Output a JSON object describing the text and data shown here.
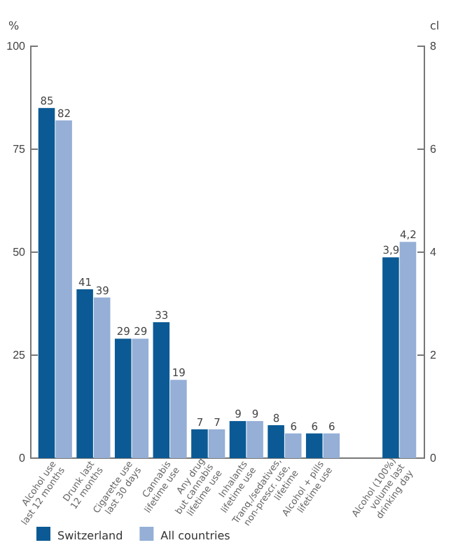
{
  "chart_data": {
    "type": "bar",
    "ylabel": "%",
    "y2label": "cl",
    "categories": [
      "Alcohol use\nlast 12 months",
      "Drunk last\n12 months",
      "Cigarette use\nlast 30 days",
      "Cannabis\nlifetime use",
      "Any drug\nbut cannabis\nlifetime use",
      "Inhalants\nlifetime use",
      "Tranq./sedatives,\nnon-prescr. use,\nlifetime",
      "Alcohol + pills\nlifetime use",
      null,
      "Alcohol (100%)\nvolume last\ndrinking day"
    ],
    "series": [
      {
        "name": "Switzerland",
        "color": "#0b5a95",
        "values": [
          85,
          41,
          29,
          33,
          7,
          9,
          8,
          6,
          null,
          null
        ],
        "value_labels": [
          "85",
          "41",
          "29",
          "33",
          "7",
          "9",
          "8",
          "6",
          null,
          null
        ]
      },
      {
        "name": "All countries",
        "color": "#95afd6",
        "values": [
          82,
          39,
          29,
          19,
          7,
          9,
          6,
          6,
          null,
          null
        ],
        "value_labels": [
          "82",
          "39",
          "29",
          "19",
          "7",
          "9",
          "6",
          "6",
          null,
          null
        ]
      },
      {
        "color": "#0b5a95",
        "axis": "y2",
        "values": [
          null,
          null,
          null,
          null,
          null,
          null,
          null,
          null,
          null,
          3.9
        ],
        "value_labels": [
          null,
          null,
          null,
          null,
          null,
          null,
          null,
          null,
          null,
          "3,9"
        ]
      },
      {
        "color": "#95afd6",
        "axis": "y2",
        "values": [
          null,
          null,
          null,
          null,
          null,
          null,
          null,
          null,
          null,
          4.2
        ],
        "value_labels": [
          null,
          null,
          null,
          null,
          null,
          null,
          null,
          null,
          null,
          "4,2"
        ]
      }
    ],
    "ylim": [
      0,
      100
    ],
    "yticks": [
      0,
      25,
      50,
      75,
      100
    ],
    "y2lim": [
      0,
      8
    ],
    "y2ticks": [
      0,
      2,
      4,
      6,
      8
    ],
    "legend": "bottom",
    "grid": false
  }
}
